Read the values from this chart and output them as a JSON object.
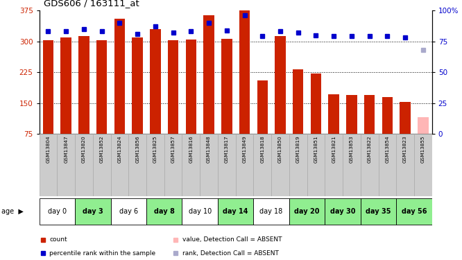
{
  "title": "GDS606 / 163111_at",
  "samples": [
    "GSM13804",
    "GSM13847",
    "GSM13820",
    "GSM13852",
    "GSM13824",
    "GSM13856",
    "GSM13825",
    "GSM13857",
    "GSM13816",
    "GSM13848",
    "GSM13817",
    "GSM13849",
    "GSM13818",
    "GSM13850",
    "GSM13819",
    "GSM13851",
    "GSM13821",
    "GSM13853",
    "GSM13822",
    "GSM13854",
    "GSM13823",
    "GSM13855"
  ],
  "counts": [
    302,
    309,
    313,
    302,
    355,
    309,
    330,
    302,
    305,
    363,
    306,
    375,
    205,
    312,
    232,
    222,
    172,
    170,
    170,
    165,
    152,
    115
  ],
  "ranks": [
    83,
    83,
    85,
    83,
    90,
    81,
    87,
    82,
    83,
    90,
    84,
    96,
    79,
    83,
    82,
    80,
    79,
    79,
    79,
    79,
    78,
    68
  ],
  "absent": [
    false,
    false,
    false,
    false,
    false,
    false,
    false,
    false,
    false,
    false,
    false,
    false,
    false,
    false,
    false,
    false,
    false,
    false,
    false,
    false,
    false,
    true
  ],
  "day_groups": [
    {
      "label": "day 0",
      "samples": [
        "GSM13804",
        "GSM13847"
      ],
      "color": "#ffffff"
    },
    {
      "label": "day 3",
      "samples": [
        "GSM13820",
        "GSM13852"
      ],
      "color": "#90ee90"
    },
    {
      "label": "day 6",
      "samples": [
        "GSM13824",
        "GSM13856"
      ],
      "color": "#ffffff"
    },
    {
      "label": "day 8",
      "samples": [
        "GSM13825",
        "GSM13857"
      ],
      "color": "#90ee90"
    },
    {
      "label": "day 10",
      "samples": [
        "GSM13816",
        "GSM13848"
      ],
      "color": "#ffffff"
    },
    {
      "label": "day 14",
      "samples": [
        "GSM13817",
        "GSM13849"
      ],
      "color": "#90ee90"
    },
    {
      "label": "day 18",
      "samples": [
        "GSM13818",
        "GSM13850"
      ],
      "color": "#ffffff"
    },
    {
      "label": "day 20",
      "samples": [
        "GSM13819",
        "GSM13851"
      ],
      "color": "#90ee90"
    },
    {
      "label": "day 30",
      "samples": [
        "GSM13821",
        "GSM13853"
      ],
      "color": "#90ee90"
    },
    {
      "label": "day 35",
      "samples": [
        "GSM13822",
        "GSM13854"
      ],
      "color": "#90ee90"
    },
    {
      "label": "day 56",
      "samples": [
        "GSM13823",
        "GSM13855"
      ],
      "color": "#90ee90"
    }
  ],
  "bar_color": "#cc2200",
  "bar_absent_color": "#ffb6b6",
  "rank_color": "#0000cc",
  "rank_absent_color": "#aaaacc",
  "ylim_left": [
    75,
    375
  ],
  "ylim_right": [
    0,
    100
  ],
  "yticks_left": [
    75,
    150,
    225,
    300,
    375
  ],
  "yticks_right": [
    0,
    25,
    50,
    75,
    100
  ],
  "grid_lines": [
    150,
    225,
    300
  ],
  "legend_items": [
    {
      "label": "count",
      "color": "#cc2200",
      "marker": "s"
    },
    {
      "label": "percentile rank within the sample",
      "color": "#0000cc",
      "marker": "s"
    },
    {
      "label": "value, Detection Call = ABSENT",
      "color": "#ffb6b6",
      "marker": "s"
    },
    {
      "label": "rank, Detection Call = ABSENT",
      "color": "#aaaacc",
      "marker": "s"
    }
  ],
  "sample_bg_color": "#cccccc",
  "sample_divider_color": "#aaaaaa"
}
